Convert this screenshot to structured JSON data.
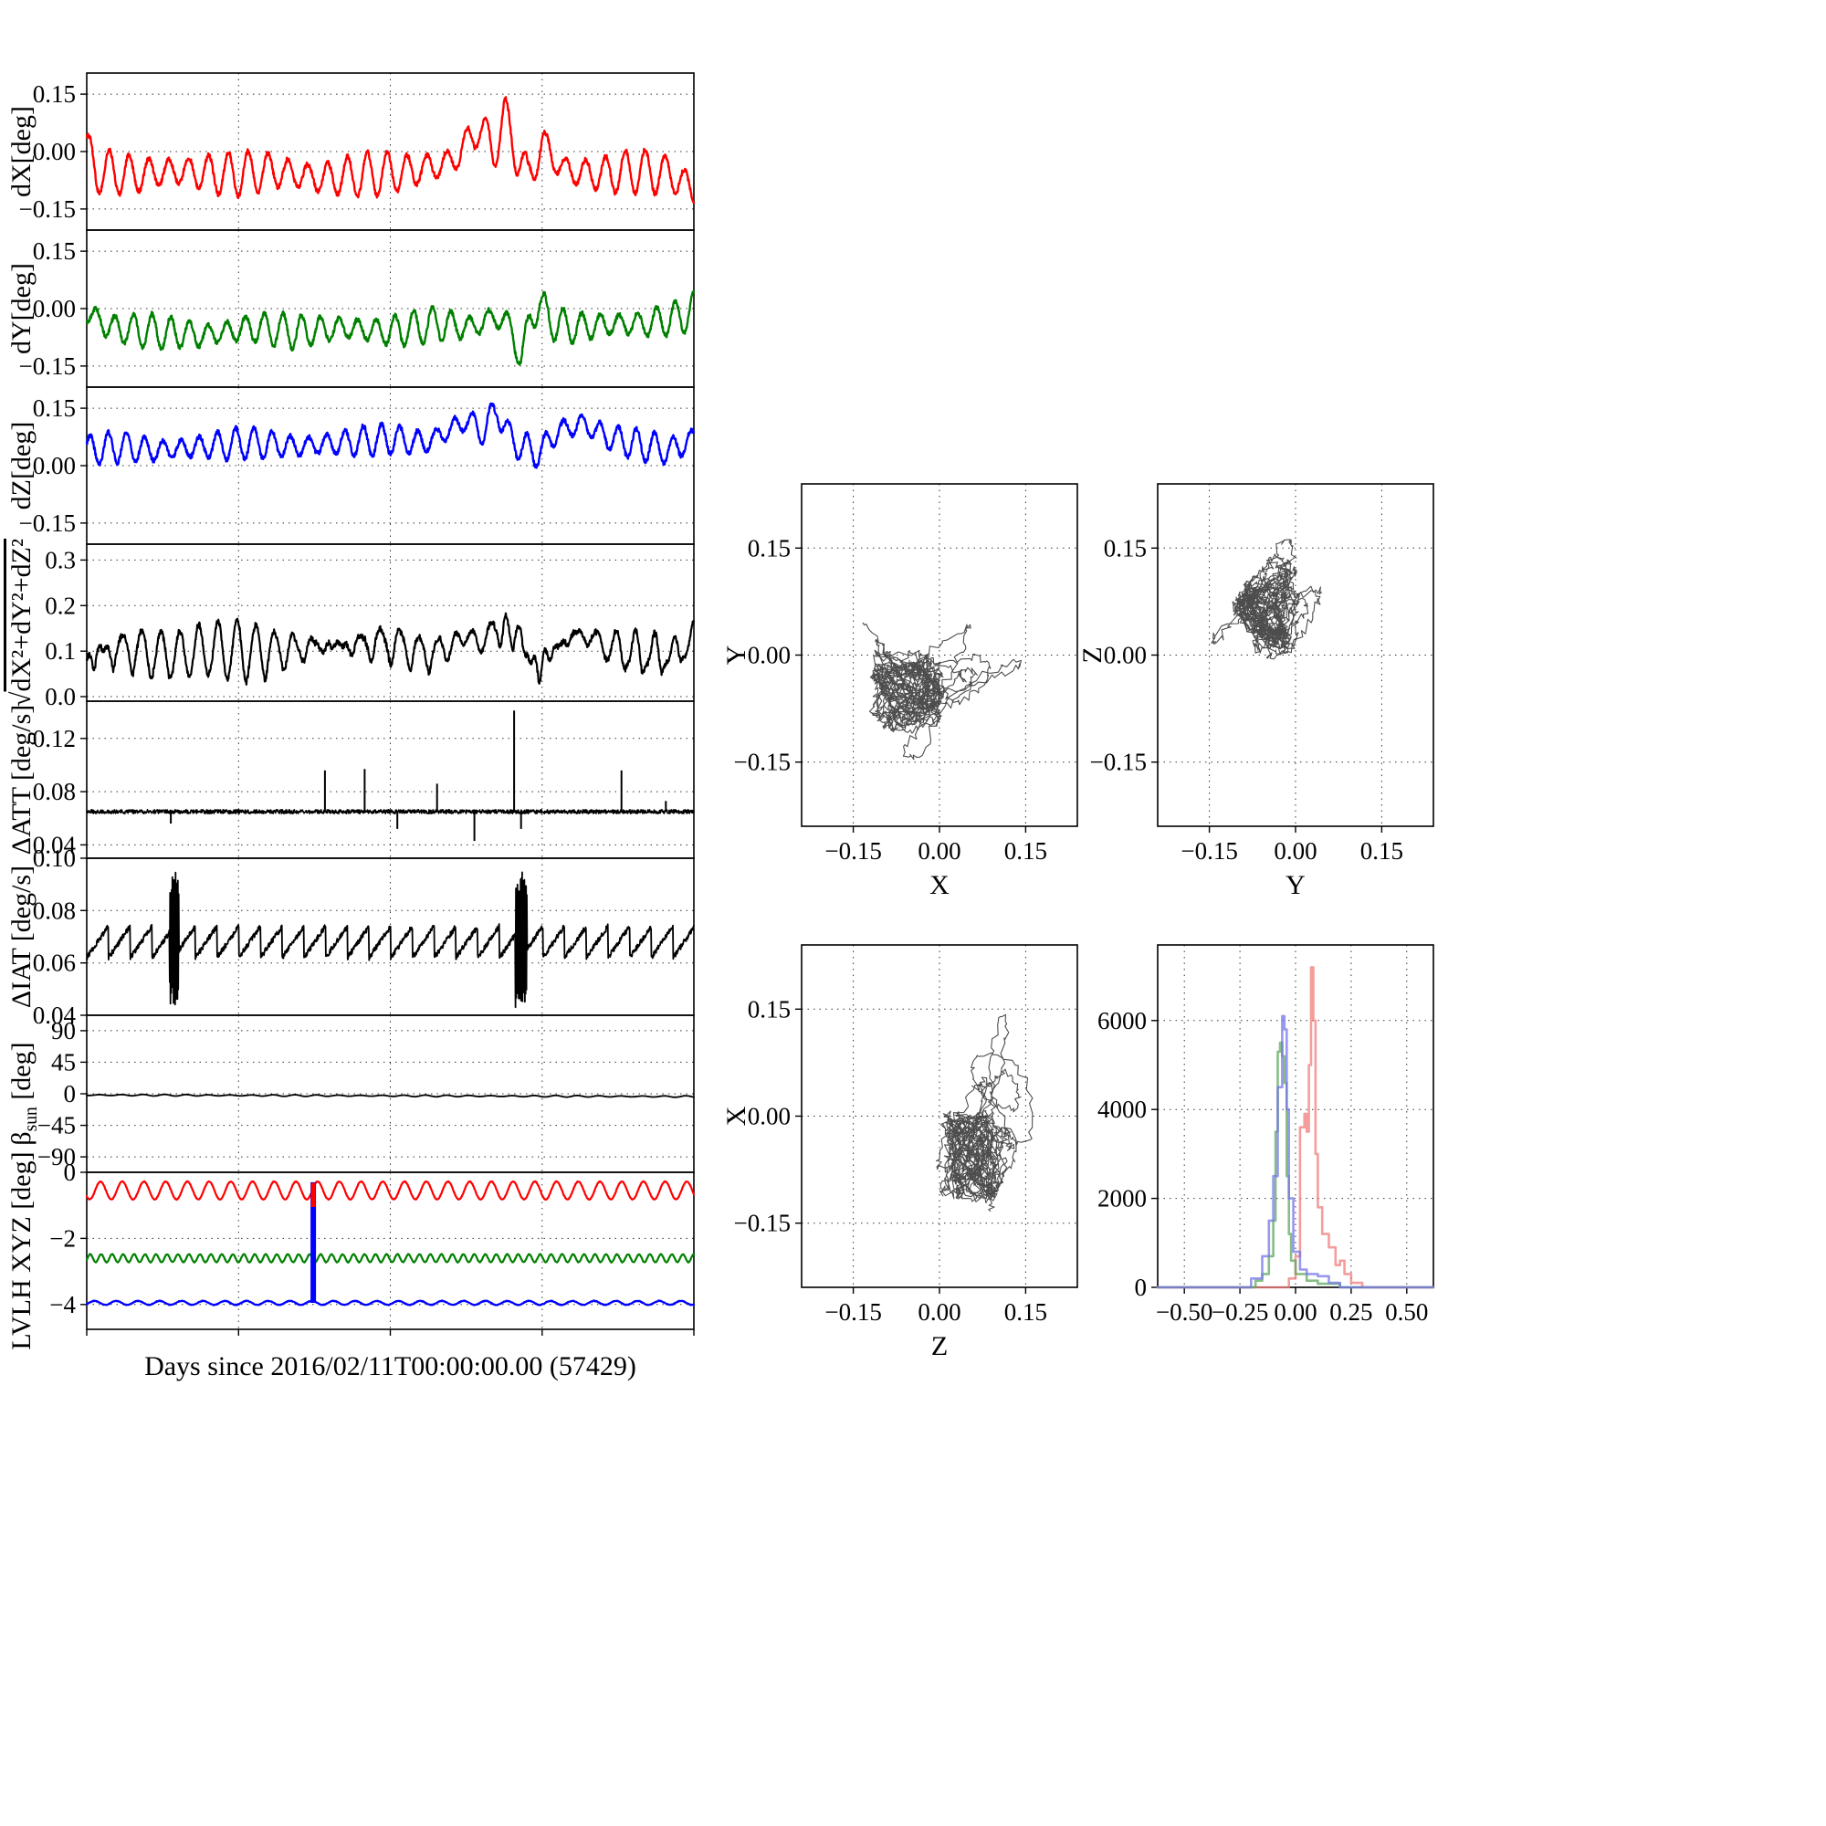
{
  "figure": {
    "xaxis_label": "Days since 2016/02/11T00:00:00.00 (57429)",
    "background": "#ffffff",
    "x_range": [
      0,
      26
    ],
    "x_gridlines": [
      0,
      6.5,
      13,
      19.5,
      26
    ]
  },
  "chart_data": {
    "time_series_panels": [
      {
        "id": "dX",
        "type": "line",
        "kind": "osc",
        "ylabel": "dX[deg]",
        "color": "#ff0000",
        "ylim": [
          -0.205,
          0.205
        ],
        "yticks": [
          {
            "v": 0.15,
            "label": "0.15"
          },
          {
            "v": 0.0,
            "label": "0.00"
          },
          {
            "v": -0.15,
            "label": "−0.15"
          }
        ],
        "base_x": [
          0,
          0.4,
          2,
          4,
          6,
          8,
          10,
          12,
          14,
          15.5,
          16.3,
          16.8,
          17.4,
          17.9,
          18.4,
          18.9,
          19.5,
          20.5,
          22,
          23.5,
          25,
          26
        ],
        "base_y": [
          0.0,
          -0.05,
          -0.06,
          -0.05,
          -0.06,
          -0.05,
          -0.07,
          -0.06,
          -0.05,
          -0.03,
          0.02,
          0.07,
          0.0,
          0.09,
          0.0,
          -0.07,
          0.02,
          -0.05,
          -0.06,
          -0.05,
          -0.06,
          -0.1
        ],
        "osc_amp": 0.045,
        "osc_period": 0.85,
        "noise": 0.006,
        "seed": 7
      },
      {
        "id": "dY",
        "type": "line",
        "kind": "osc",
        "ylabel": "dY[deg]",
        "color": "#008000",
        "ylim": [
          -0.205,
          0.205
        ],
        "yticks": [
          {
            "v": 0.15,
            "label": "0.15"
          },
          {
            "v": 0.0,
            "label": "0.00"
          },
          {
            "v": -0.15,
            "label": "−0.15"
          }
        ],
        "base_x": [
          0,
          1,
          3,
          5,
          7,
          9,
          11,
          13,
          15,
          16.5,
          17.5,
          18.2,
          18.6,
          19.0,
          19.4,
          20,
          21,
          22.5,
          24,
          25.5,
          26
        ],
        "base_y": [
          -0.01,
          -0.05,
          -0.06,
          -0.07,
          -0.05,
          -0.06,
          -0.05,
          -0.06,
          -0.04,
          -0.05,
          -0.02,
          -0.05,
          -0.14,
          -0.02,
          0.01,
          -0.04,
          -0.05,
          -0.04,
          -0.04,
          -0.02,
          0.0
        ],
        "osc_amp": 0.035,
        "osc_period": 0.8,
        "noise": 0.006,
        "seed": 11
      },
      {
        "id": "dZ",
        "type": "line",
        "kind": "osc",
        "ylabel": "dZ[deg]",
        "color": "#0000ff",
        "ylim": [
          -0.205,
          0.205
        ],
        "yticks": [
          {
            "v": 0.15,
            "label": "0.15"
          },
          {
            "v": 0.0,
            "label": "0.00"
          },
          {
            "v": -0.15,
            "label": "−0.15"
          }
        ],
        "base_x": [
          0,
          1.5,
          3,
          5,
          7,
          9,
          11,
          13,
          14.5,
          15.5,
          16.2,
          17.0,
          17.6,
          18.1,
          18.7,
          19.3,
          20.2,
          21.2,
          22.5,
          24,
          25,
          26
        ],
        "base_y": [
          0.04,
          0.05,
          0.04,
          0.05,
          0.06,
          0.05,
          0.06,
          0.07,
          0.06,
          0.09,
          0.12,
          0.09,
          0.15,
          0.07,
          0.05,
          0.03,
          0.09,
          0.11,
          0.07,
          0.05,
          0.04,
          0.07
        ],
        "osc_amp": 0.032,
        "osc_period": 0.78,
        "noise": 0.006,
        "seed": 13
      },
      {
        "id": "mag",
        "type": "line",
        "kind": "magnitude",
        "source": [
          "dX",
          "dY",
          "dZ"
        ],
        "ylabel": [
          {
            "t": "√"
          },
          {
            "t": "dX²+dY²+dZ²",
            "over": true
          }
        ],
        "color": "#000000",
        "ylim": [
          -0.01,
          0.335
        ],
        "yticks": [
          {
            "v": 0.3,
            "label": "0.3"
          },
          {
            "v": 0.2,
            "label": "0.2"
          },
          {
            "v": 0.1,
            "label": "0.1"
          },
          {
            "v": 0.0,
            "label": "0.0"
          }
        ]
      },
      {
        "id": "dATT",
        "type": "line",
        "kind": "baseline-spikes",
        "ylabel": "ΔATT [deg/s]",
        "color": "#000000",
        "ylim": [
          0.03,
          0.148
        ],
        "yticks": [
          {
            "v": 0.12,
            "label": "0.12"
          },
          {
            "v": 0.08,
            "label": "0.08"
          },
          {
            "v": 0.04,
            "label": "0.04"
          }
        ],
        "baseline": 0.065,
        "noise": 0.0015,
        "seed": 17,
        "spikes": [
          {
            "x": 3.6,
            "y": 0.056
          },
          {
            "x": 10.2,
            "y": 0.096
          },
          {
            "x": 11.9,
            "y": 0.097
          },
          {
            "x": 13.3,
            "y": 0.052
          },
          {
            "x": 15.0,
            "y": 0.086
          },
          {
            "x": 16.6,
            "y": 0.043
          },
          {
            "x": 18.3,
            "y": 0.141
          },
          {
            "x": 18.6,
            "y": 0.052
          },
          {
            "x": 22.9,
            "y": 0.096
          },
          {
            "x": 24.8,
            "y": 0.073
          }
        ]
      },
      {
        "id": "dIAT",
        "type": "line",
        "kind": "saw-bursts",
        "ylabel": "ΔIAT [deg/s]",
        "color": "#000000",
        "ylim": [
          0.04,
          0.1
        ],
        "yticks": [
          {
            "v": 0.1,
            "label": "0.10"
          },
          {
            "v": 0.08,
            "label": "0.08"
          },
          {
            "v": 0.06,
            "label": "0.06"
          },
          {
            "v": 0.04,
            "label": "0.04"
          }
        ],
        "saw_min": 0.062,
        "saw_max": 0.074,
        "saw_period": 0.93,
        "noise": 0.001,
        "seed": 19,
        "bursts": [
          {
            "x0": 3.55,
            "x1": 3.95,
            "lo": 0.043,
            "hi": 0.095
          },
          {
            "x0": 18.35,
            "x1": 18.85,
            "lo": 0.043,
            "hi": 0.095
          }
        ]
      },
      {
        "id": "beta_sun",
        "type": "line",
        "kind": "osc",
        "ylabel": [
          {
            "t": "β"
          },
          {
            "t": "sun",
            "sub": true
          },
          {
            "t": " [deg]"
          }
        ],
        "color": "#000000",
        "ylim": [
          -112,
          112
        ],
        "yticks": [
          {
            "v": 90,
            "label": "90"
          },
          {
            "v": 45,
            "label": "45"
          },
          {
            "v": 0,
            "label": "0"
          },
          {
            "v": -45,
            "label": "−45"
          },
          {
            "v": -90,
            "label": "−90"
          }
        ],
        "base_x": [
          0,
          26
        ],
        "base_y": [
          -1.8,
          -4.0
        ],
        "osc_amp": 0.9,
        "osc_period": 0.93,
        "noise": 0.12,
        "seed": 23
      },
      {
        "id": "lvlh",
        "type": "line",
        "kind": "multi-osc",
        "ylabel": "LVLH XYZ [deg]",
        "ylim": [
          -4.75,
          0
        ],
        "yticks": [
          {
            "v": 0,
            "label": "0"
          },
          {
            "v": -2,
            "label": "−2"
          },
          {
            "v": -4,
            "label": "−4"
          }
        ],
        "series": [
          {
            "name": "X",
            "color": "#ff0000",
            "base": -0.55,
            "amp": 0.27,
            "period": 0.93,
            "seed": 29
          },
          {
            "name": "Y",
            "color": "#008000",
            "base": -2.6,
            "amp": 0.12,
            "period": 0.47,
            "seed": 31
          },
          {
            "name": "Z",
            "color": "#0000ff",
            "base": -3.95,
            "amp": 0.06,
            "period": 0.93,
            "seed": 37
          }
        ],
        "spikes": [
          {
            "color": "#0000ff",
            "x": 9.7,
            "y0": -3.95,
            "y1": -0.3,
            "width": 6
          },
          {
            "color": "#ff0000",
            "x": 9.7,
            "y0": -1.05,
            "y1": -0.32,
            "width": 5
          }
        ]
      }
    ],
    "phase_plots": [
      {
        "id": "xy",
        "type": "scatter",
        "xlabel": "X",
        "ylabel": "Y",
        "x_from": "dX",
        "y_from": "dY",
        "xlim": [
          -0.24,
          0.24
        ],
        "ylim": [
          -0.24,
          0.24
        ],
        "ticks": [
          {
            "v": -0.15,
            "label": "−0.15"
          },
          {
            "v": 0.0,
            "label": "0.00"
          },
          {
            "v": 0.15,
            "label": "0.15"
          }
        ]
      },
      {
        "id": "yz",
        "type": "scatter",
        "xlabel": "Y",
        "ylabel": "Z",
        "x_from": "dY",
        "y_from": "dZ",
        "xlim": [
          -0.24,
          0.24
        ],
        "ylim": [
          -0.24,
          0.24
        ],
        "ticks": [
          {
            "v": -0.15,
            "label": "−0.15"
          },
          {
            "v": 0.0,
            "label": "0.00"
          },
          {
            "v": 0.15,
            "label": "0.15"
          }
        ]
      },
      {
        "id": "zx",
        "type": "scatter",
        "xlabel": "Z",
        "ylabel": "X",
        "x_from": "dZ",
        "y_from": "dX",
        "xlim": [
          -0.24,
          0.24
        ],
        "ylim": [
          -0.24,
          0.24
        ],
        "ticks": [
          {
            "v": -0.15,
            "label": "−0.15"
          },
          {
            "v": 0.0,
            "label": "0.00"
          },
          {
            "v": 0.15,
            "label": "0.15"
          }
        ]
      }
    ],
    "histogram": {
      "type": "histogram",
      "xlim": [
        -0.62,
        0.62
      ],
      "ylim": [
        0,
        7700
      ],
      "xticks": [
        {
          "v": -0.5,
          "label": "−0.50"
        },
        {
          "v": -0.25,
          "label": "−0.25"
        },
        {
          "v": 0.0,
          "label": "0.00"
        },
        {
          "v": 0.25,
          "label": "0.25"
        },
        {
          "v": 0.5,
          "label": "0.50"
        }
      ],
      "yticks": [
        {
          "v": 0,
          "label": "0"
        },
        {
          "v": 2000,
          "label": "2000"
        },
        {
          "v": 4000,
          "label": "4000"
        },
        {
          "v": 6000,
          "label": "6000"
        }
      ],
      "series": [
        {
          "name": "red",
          "color": "#f17c7c",
          "points": [
            [
              -0.62,
              0
            ],
            [
              -0.05,
              0
            ],
            [
              -0.03,
              200
            ],
            [
              0.0,
              700
            ],
            [
              0.02,
              3600
            ],
            [
              0.04,
              3900
            ],
            [
              0.05,
              3500
            ],
            [
              0.06,
              5000
            ],
            [
              0.07,
              7200
            ],
            [
              0.08,
              6000
            ],
            [
              0.09,
              3000
            ],
            [
              0.1,
              1800
            ],
            [
              0.12,
              1200
            ],
            [
              0.15,
              900
            ],
            [
              0.18,
              500
            ],
            [
              0.2,
              600
            ],
            [
              0.22,
              300
            ],
            [
              0.25,
              100
            ],
            [
              0.3,
              0
            ],
            [
              0.62,
              0
            ]
          ]
        },
        {
          "name": "green",
          "color": "#5fa85f",
          "points": [
            [
              -0.62,
              0
            ],
            [
              -0.22,
              0
            ],
            [
              -0.18,
              150
            ],
            [
              -0.15,
              300
            ],
            [
              -0.12,
              700
            ],
            [
              -0.1,
              1500
            ],
            [
              -0.09,
              3500
            ],
            [
              -0.08,
              5300
            ],
            [
              -0.07,
              5500
            ],
            [
              -0.06,
              5200
            ],
            [
              -0.05,
              4600
            ],
            [
              -0.04,
              2500
            ],
            [
              -0.03,
              1200
            ],
            [
              -0.02,
              600
            ],
            [
              0.0,
              300
            ],
            [
              0.05,
              150
            ],
            [
              0.1,
              80
            ],
            [
              0.2,
              0
            ],
            [
              0.62,
              0
            ]
          ]
        },
        {
          "name": "blue",
          "color": "#7676e8",
          "points": [
            [
              -0.62,
              0
            ],
            [
              -0.25,
              0
            ],
            [
              -0.2,
              200
            ],
            [
              -0.15,
              700
            ],
            [
              -0.12,
              1500
            ],
            [
              -0.1,
              2500
            ],
            [
              -0.08,
              4500
            ],
            [
              -0.06,
              6100
            ],
            [
              -0.05,
              5800
            ],
            [
              -0.04,
              4000
            ],
            [
              -0.03,
              2000
            ],
            [
              -0.01,
              800
            ],
            [
              0.02,
              400
            ],
            [
              0.05,
              300
            ],
            [
              0.1,
              250
            ],
            [
              0.15,
              100
            ],
            [
              0.2,
              0
            ],
            [
              0.62,
              0
            ]
          ]
        }
      ]
    }
  }
}
